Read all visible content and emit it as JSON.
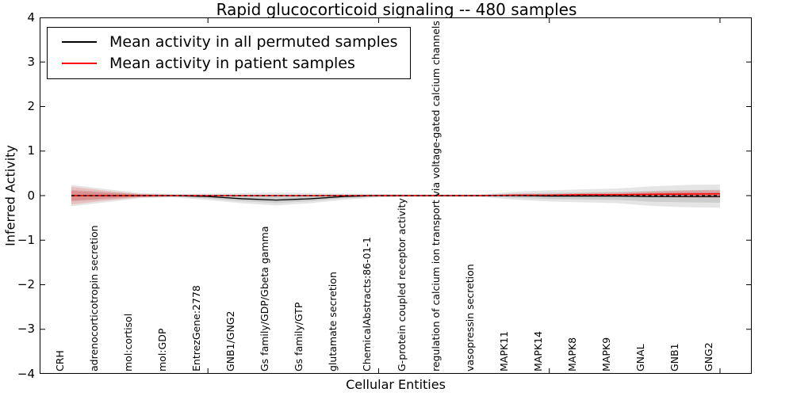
{
  "title": "Rapid glucocorticoid signaling -- 480 samples",
  "axes": {
    "ylabel": "Inferred Activity",
    "xlabel": "Cellular Entities",
    "ytick_labels": [
      "4",
      "3",
      "2",
      "1",
      "0",
      "−1",
      "−2",
      "−3",
      "−4"
    ],
    "ylim": [
      -4,
      4
    ]
  },
  "legend": {
    "entries": [
      {
        "label": "Mean activity in all permuted samples",
        "color": "#000000"
      },
      {
        "label": "Mean activity in patient samples",
        "color": "#ff0000"
      }
    ]
  },
  "chart_data": {
    "type": "line",
    "title": "Rapid glucocorticoid signaling -- 480 samples",
    "xlabel": "Cellular Entities",
    "ylabel": "Inferred Activity",
    "ylim": [
      -4,
      4
    ],
    "x_tick_values": [
      5,
      10,
      15,
      20
    ],
    "legend_position": "upper left",
    "grid": false,
    "categories": [
      "CRH",
      "adrenocorticotropin secretion",
      "mol:cortisol",
      "mol:GDP",
      "EntrezGene:2778",
      "GNB1/GNG2",
      "Gs family/GDP/Gbeta gamma",
      "Gs family/GTP",
      "glutamate secretion",
      "ChemicalAbstracts:86-01-1",
      "G-protein coupled receptor activity",
      "regulation of calcium ion transport via voltage-gated calcium channels",
      "vasopressin secretion",
      "MAPK11",
      "MAPK14",
      "MAPK8",
      "MAPK9",
      "GNAL",
      "GNB1",
      "GNG2"
    ],
    "series": [
      {
        "name": "Mean activity in all permuted samples",
        "color": "#000000",
        "style": "solid",
        "values": [
          0,
          0,
          0,
          0,
          -0.02,
          -0.07,
          -0.1,
          -0.07,
          -0.02,
          0,
          0,
          0,
          0,
          0,
          -0.01,
          -0.01,
          -0.01,
          -0.02,
          -0.02,
          -0.02
        ]
      },
      {
        "name": "Mean activity in patient samples",
        "color": "#ff0000",
        "style": "solid",
        "values": [
          0,
          0,
          0,
          0,
          0,
          0,
          0,
          0,
          0,
          0,
          0,
          0,
          0,
          0.01,
          0.01,
          0.02,
          0.02,
          0.03,
          0.035,
          0.04
        ]
      }
    ],
    "zero_line": {
      "value": 0,
      "color": "#000000",
      "style": "dashed"
    },
    "bands": {
      "permuted_upper": [
        0.24,
        0.15,
        0.06,
        0.04,
        0.05,
        0.06,
        0.07,
        0.06,
        0.05,
        0.04,
        0.03,
        0.03,
        0.03,
        0.09,
        0.12,
        0.14,
        0.16,
        0.21,
        0.24,
        0.25
      ],
      "permuted_lower": [
        -0.24,
        -0.15,
        -0.06,
        -0.04,
        -0.1,
        -0.17,
        -0.22,
        -0.17,
        -0.09,
        -0.04,
        -0.03,
        -0.03,
        -0.03,
        -0.09,
        -0.13,
        -0.15,
        -0.17,
        -0.23,
        -0.26,
        -0.27
      ],
      "patient_margin": [
        0.2,
        0.11,
        0.04,
        0.015,
        0.015,
        0.015,
        0.015,
        0.015,
        0.015,
        0.015,
        0.015,
        0.015,
        0.015,
        0.02,
        0.025,
        0.035,
        0.045,
        0.06,
        0.08,
        0.09
      ],
      "gray_fill": "rgba(0,0,0,0.10)",
      "red_fill": "rgba(255,0,0,0.16)"
    }
  }
}
